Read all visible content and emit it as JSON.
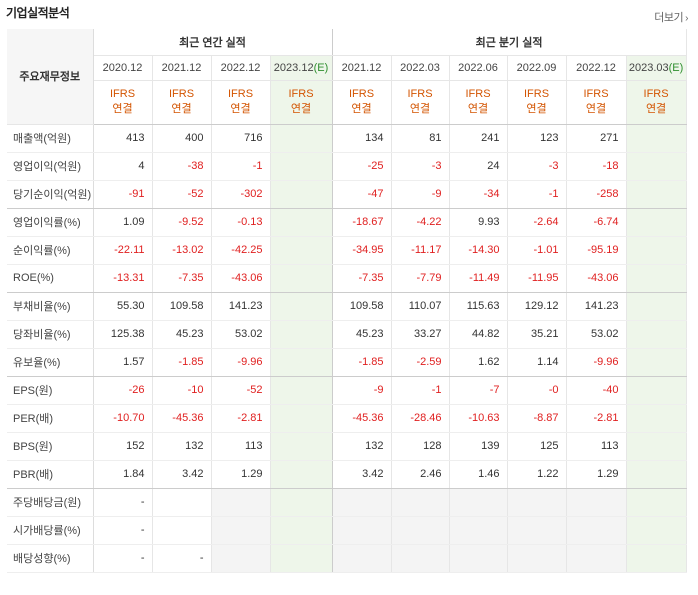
{
  "title": "기업실적분석",
  "more_label": "더보기",
  "header": {
    "row_label": "주요재무정보",
    "annual_title": "최근 연간 실적",
    "quarter_title": "최근 분기 실적",
    "annual_periods": [
      {
        "label": "2020.12",
        "estimate": false
      },
      {
        "label": "2021.12",
        "estimate": false
      },
      {
        "label": "2022.12",
        "estimate": false
      },
      {
        "label": "2023.12",
        "estimate": true
      }
    ],
    "quarter_periods": [
      {
        "label": "2021.12",
        "estimate": false
      },
      {
        "label": "2022.03",
        "estimate": false
      },
      {
        "label": "2022.06",
        "estimate": false
      },
      {
        "label": "2022.09",
        "estimate": false
      },
      {
        "label": "2022.12",
        "estimate": false
      },
      {
        "label": "2023.03",
        "estimate": true
      }
    ],
    "estimate_mark": "(E)",
    "standard_line1": "IFRS",
    "standard_line2": "연결"
  },
  "rows": [
    {
      "label": "매출액(억원)",
      "annual": [
        "413",
        "400",
        "716",
        ""
      ],
      "quarter": [
        "134",
        "81",
        "241",
        "123",
        "271",
        ""
      ]
    },
    {
      "label": "영업이익(억원)",
      "annual": [
        "4",
        "-38",
        "-1",
        ""
      ],
      "quarter": [
        "-25",
        "-3",
        "24",
        "-3",
        "-18",
        ""
      ]
    },
    {
      "label": "당기순이익(억원)",
      "annual": [
        "-91",
        "-52",
        "-302",
        ""
      ],
      "quarter": [
        "-47",
        "-9",
        "-34",
        "-1",
        "-258",
        ""
      ],
      "sep": true
    },
    {
      "label": "영업이익률(%)",
      "annual": [
        "1.09",
        "-9.52",
        "-0.13",
        ""
      ],
      "quarter": [
        "-18.67",
        "-4.22",
        "9.93",
        "-2.64",
        "-6.74",
        ""
      ]
    },
    {
      "label": "순이익률(%)",
      "annual": [
        "-22.11",
        "-13.02",
        "-42.25",
        ""
      ],
      "quarter": [
        "-34.95",
        "-11.17",
        "-14.30",
        "-1.01",
        "-95.19",
        ""
      ]
    },
    {
      "label": "ROE(%)",
      "annual": [
        "-13.31",
        "-7.35",
        "-43.06",
        ""
      ],
      "quarter": [
        "-7.35",
        "-7.79",
        "-11.49",
        "-11.95",
        "-43.06",
        ""
      ],
      "sep": true
    },
    {
      "label": "부채비율(%)",
      "annual": [
        "55.30",
        "109.58",
        "141.23",
        ""
      ],
      "quarter": [
        "109.58",
        "110.07",
        "115.63",
        "129.12",
        "141.23",
        ""
      ]
    },
    {
      "label": "당좌비율(%)",
      "annual": [
        "125.38",
        "45.23",
        "53.02",
        ""
      ],
      "quarter": [
        "45.23",
        "33.27",
        "44.82",
        "35.21",
        "53.02",
        ""
      ]
    },
    {
      "label": "유보율(%)",
      "annual": [
        "1.57",
        "-1.85",
        "-9.96",
        ""
      ],
      "quarter": [
        "-1.85",
        "-2.59",
        "1.62",
        "1.14",
        "-9.96",
        ""
      ],
      "sep": true
    },
    {
      "label": "EPS(원)",
      "annual": [
        "-26",
        "-10",
        "-52",
        ""
      ],
      "quarter": [
        "-9",
        "-1",
        "-7",
        "-0",
        "-40",
        ""
      ]
    },
    {
      "label": "PER(배)",
      "annual": [
        "-10.70",
        "-45.36",
        "-2.81",
        ""
      ],
      "quarter": [
        "-45.36",
        "-28.46",
        "-10.63",
        "-8.87",
        "-2.81",
        ""
      ]
    },
    {
      "label": "BPS(원)",
      "annual": [
        "152",
        "132",
        "113",
        ""
      ],
      "quarter": [
        "132",
        "128",
        "139",
        "125",
        "113",
        ""
      ]
    },
    {
      "label": "PBR(배)",
      "annual": [
        "1.84",
        "3.42",
        "1.29",
        ""
      ],
      "quarter": [
        "3.42",
        "2.46",
        "1.46",
        "1.22",
        "1.29",
        ""
      ],
      "sep": true
    },
    {
      "label": "주당배당금(원)",
      "annual": [
        "-",
        "",
        "",
        " "
      ],
      "quarter": [
        "",
        "",
        "",
        "",
        "",
        ""
      ],
      "dividend": true
    },
    {
      "label": "시가배당률(%)",
      "annual": [
        "-",
        "",
        "",
        ""
      ],
      "quarter": [
        "",
        "",
        "",
        "",
        "",
        ""
      ],
      "dividend": true
    },
    {
      "label": "배당성향(%)",
      "annual": [
        "-",
        "-",
        "",
        ""
      ],
      "quarter": [
        "",
        "",
        "",
        "",
        "",
        ""
      ],
      "dividend": true
    }
  ],
  "colors": {
    "negative": "#e02020",
    "ifrs": "#d35400",
    "estimate_bg": "#eef6ea"
  }
}
